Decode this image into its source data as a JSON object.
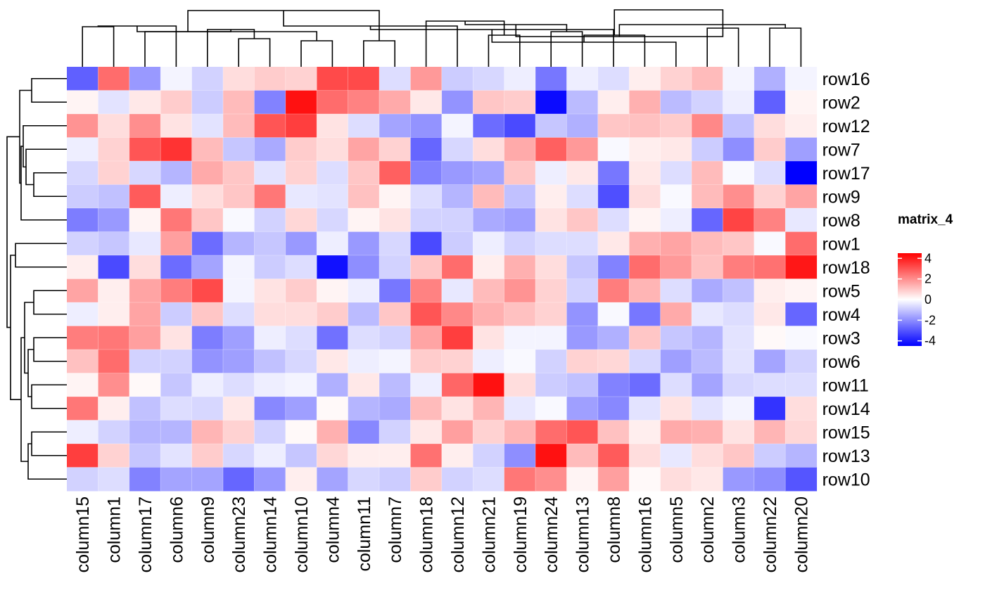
{
  "chart_data": {
    "type": "heatmap",
    "rows": [
      "row16",
      "row2",
      "row12",
      "row7",
      "row17",
      "row9",
      "row8",
      "row1",
      "row18",
      "row5",
      "row4",
      "row3",
      "row6",
      "row11",
      "row14",
      "row15",
      "row13",
      "row10"
    ],
    "columns": [
      "column15",
      "column1",
      "column17",
      "column6",
      "column9",
      "column23",
      "column14",
      "column10",
      "column4",
      "column11",
      "column7",
      "column18",
      "column12",
      "column21",
      "column19",
      "column24",
      "column13",
      "column8",
      "column16",
      "column5",
      "column2",
      "column3",
      "column22",
      "column20"
    ],
    "values": [
      [
        -2.8,
        2.6,
        -1.8,
        -0.2,
        -0.8,
        0.6,
        0.9,
        0.8,
        3.2,
        3.2,
        -0.6,
        1.8,
        -0.9,
        -0.7,
        -0.3,
        -2.4,
        -0.3,
        -0.6,
        0.3,
        0.8,
        1.2,
        -0.2,
        -1.4,
        -0.2
      ],
      [
        0.2,
        -0.5,
        0.4,
        0.9,
        -0.9,
        1.2,
        -2.2,
        4.2,
        2.6,
        2.2,
        1.5,
        0.4,
        -1.9,
        1.0,
        0.9,
        -4.3,
        -1.2,
        0.3,
        1.4,
        -1.2,
        -0.8,
        -0.3,
        -2.8,
        0.2
      ],
      [
        1.9,
        0.6,
        2.0,
        0.5,
        -0.5,
        1.2,
        3.0,
        3.4,
        0.5,
        -0.6,
        -1.6,
        -1.9,
        -0.2,
        -2.6,
        -3.2,
        -1.0,
        -1.4,
        1.0,
        1.1,
        0.9,
        2.1,
        -1.1,
        0.6,
        0.3
      ],
      [
        -0.3,
        0.8,
        3.0,
        3.6,
        1.2,
        -1.0,
        -1.5,
        0.9,
        0.6,
        1.6,
        0.8,
        -2.7,
        -0.7,
        0.6,
        1.5,
        2.8,
        1.8,
        -0.1,
        0.3,
        0.4,
        -0.9,
        -2.0,
        0.9,
        -1.7
      ],
      [
        -0.7,
        0.8,
        -0.7,
        -1.3,
        1.5,
        1.0,
        -0.5,
        0.8,
        -0.6,
        1.0,
        2.8,
        -2.2,
        -1.8,
        -1.6,
        1.0,
        -0.3,
        0.4,
        -2.4,
        0.4,
        -0.6,
        1.2,
        -0.1,
        -0.6,
        -4.6
      ],
      [
        -0.9,
        -1.1,
        2.9,
        -0.3,
        0.6,
        1.0,
        2.4,
        -0.4,
        -0.5,
        1.1,
        0.2,
        -0.6,
        -1.3,
        1.2,
        -1.1,
        0.3,
        -0.6,
        -3.1,
        0.6,
        -0.1,
        1.2,
        2.0,
        0.8,
        1.6
      ],
      [
        -2.3,
        -1.8,
        0.2,
        2.4,
        1.0,
        -0.1,
        -0.8,
        0.7,
        -0.7,
        0.2,
        0.5,
        -0.8,
        -0.8,
        -1.5,
        -1.7,
        0.5,
        1.0,
        -0.6,
        0.2,
        -0.3,
        -2.7,
        3.3,
        2.2,
        -0.4
      ],
      [
        -0.8,
        -1.0,
        -0.4,
        1.7,
        -2.6,
        -1.3,
        -1.0,
        -1.8,
        -0.3,
        -1.8,
        -0.7,
        -3.2,
        -0.9,
        -0.3,
        -0.8,
        -0.6,
        -0.6,
        0.4,
        1.4,
        1.6,
        1.2,
        1.0,
        -0.1,
        2.6
      ],
      [
        0.3,
        -3.2,
        0.6,
        -2.6,
        -1.6,
        -0.2,
        -0.9,
        -0.6,
        -4.2,
        -2.0,
        -0.8,
        1.0,
        2.6,
        0.3,
        1.4,
        0.6,
        -1.0,
        -2.2,
        2.6,
        1.8,
        1.1,
        2.3,
        2.5,
        4.1
      ],
      [
        1.6,
        0.3,
        1.6,
        2.3,
        3.2,
        -0.2,
        0.5,
        0.9,
        0.2,
        -0.3,
        -2.4,
        2.2,
        -0.4,
        1.2,
        1.9,
        0.8,
        -0.8,
        2.3,
        1.3,
        -0.6,
        -1.5,
        -1.1,
        0.3,
        0.2
      ],
      [
        -0.3,
        0.3,
        1.6,
        -0.9,
        1.0,
        -0.6,
        0.6,
        0.6,
        0.9,
        -1.2,
        1.0,
        3.0,
        2.1,
        1.4,
        1.1,
        0.8,
        -1.9,
        -0.1,
        -2.4,
        1.5,
        -0.4,
        -0.6,
        0.4,
        -2.7
      ],
      [
        2.3,
        2.4,
        1.7,
        0.5,
        -2.3,
        -1.7,
        -0.3,
        -0.6,
        -2.5,
        -0.6,
        -0.8,
        1.6,
        3.4,
        0.5,
        -0.2,
        -0.2,
        -1.8,
        -1.4,
        1.0,
        -1.0,
        -1.3,
        -0.5,
        0.1,
        -0.1
      ],
      [
        1.1,
        2.6,
        -0.8,
        -0.8,
        -1.9,
        -1.7,
        -1.1,
        -0.7,
        0.4,
        -0.3,
        -0.2,
        0.9,
        0.8,
        -0.3,
        -0.1,
        -0.8,
        0.8,
        0.7,
        -0.7,
        -1.7,
        -1.2,
        -0.5,
        -1.6,
        -0.8
      ],
      [
        0.2,
        2.0,
        0.1,
        -1.0,
        -0.3,
        -0.6,
        -0.3,
        -0.2,
        -1.4,
        0.4,
        -1.2,
        -0.3,
        2.7,
        4.2,
        0.6,
        -0.9,
        -1.1,
        -2.2,
        -2.6,
        -0.6,
        -1.6,
        -0.7,
        -0.6,
        -0.6
      ],
      [
        2.4,
        0.3,
        -1.1,
        -0.6,
        -0.7,
        0.4,
        -2.1,
        -1.7,
        0.1,
        -1.3,
        -1.5,
        1.2,
        0.5,
        1.3,
        -0.4,
        -0.1,
        -1.7,
        -2.1,
        -0.5,
        0.5,
        -0.5,
        -0.2,
        -3.6,
        0.6
      ],
      [
        -0.3,
        -0.8,
        -1.3,
        -1.3,
        1.3,
        0.8,
        -0.8,
        0.1,
        1.4,
        -2.1,
        -0.8,
        0.4,
        1.7,
        0.8,
        1.3,
        2.6,
        3.0,
        1.1,
        0.3,
        1.5,
        1.4,
        0.5,
        1.3,
        0.7
      ],
      [
        3.4,
        0.8,
        -1.0,
        -0.5,
        0.9,
        -0.7,
        -0.3,
        -1.0,
        0.7,
        0.3,
        0.3,
        2.5,
        0.3,
        -0.8,
        -2.0,
        4.2,
        1.2,
        2.9,
        0.6,
        -0.4,
        0.6,
        1.0,
        -0.9,
        -1.3
      ],
      [
        -0.8,
        -0.6,
        -2.2,
        -1.6,
        -1.6,
        -2.7,
        -1.8,
        0.3,
        -1.6,
        -0.7,
        -0.9,
        0.9,
        -0.8,
        -0.6,
        2.4,
        2.0,
        0.2,
        1.7,
        0.1,
        0.6,
        0.4,
        -1.8,
        -2.0,
        -3.0
      ]
    ],
    "color_scale": {
      "low": "#0000ff",
      "mid": "#ffffff",
      "high": "#ff0000",
      "domain": [
        -4.5,
        0,
        4.5
      ]
    },
    "legend": {
      "title": "matrix_4",
      "ticks": [
        4,
        2,
        0,
        -2,
        -4
      ],
      "labels": [
        "4",
        "2",
        "0",
        "-2",
        "-4"
      ],
      "placement": "right"
    },
    "row_dendrogram": "left",
    "column_dendrogram": "top"
  }
}
